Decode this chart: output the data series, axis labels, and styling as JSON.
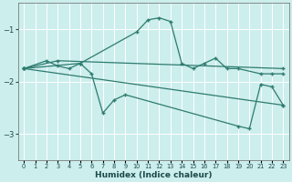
{
  "xlabel": "Humidex (Indice chaleur)",
  "background_color": "#cceeed",
  "grid_color": "#ffffff",
  "line_color": "#2e7b6e",
  "xlim": [
    -0.5,
    23.5
  ],
  "ylim": [
    -3.5,
    -0.5
  ],
  "yticks": [
    -3,
    -2,
    -1
  ],
  "xticks": [
    0,
    1,
    2,
    3,
    4,
    5,
    6,
    7,
    8,
    9,
    10,
    11,
    12,
    13,
    14,
    15,
    16,
    17,
    18,
    19,
    20,
    21,
    22,
    23
  ],
  "series": [
    {
      "x": [
        0,
        2,
        3,
        4,
        5,
        10,
        11,
        12,
        13,
        14,
        15,
        16,
        17,
        18,
        19,
        21,
        22,
        23
      ],
      "y": [
        -1.75,
        -1.6,
        -1.7,
        -1.75,
        -1.65,
        -1.05,
        -0.82,
        -0.78,
        -0.85,
        -1.65,
        -1.75,
        -1.65,
        -1.55,
        -1.75,
        -1.75,
        -1.85,
        -1.85,
        -1.85
      ]
    },
    {
      "x": [
        0,
        3,
        23
      ],
      "y": [
        -1.75,
        -1.6,
        -1.75
      ]
    },
    {
      "x": [
        0,
        23
      ],
      "y": [
        -1.75,
        -2.45
      ]
    },
    {
      "x": [
        0,
        5,
        6,
        7,
        8,
        9,
        19,
        20,
        21,
        22,
        23
      ],
      "y": [
        -1.75,
        -1.65,
        -1.85,
        -2.6,
        -2.35,
        -2.25,
        -2.85,
        -2.9,
        -2.05,
        -2.1,
        -2.45
      ]
    }
  ]
}
